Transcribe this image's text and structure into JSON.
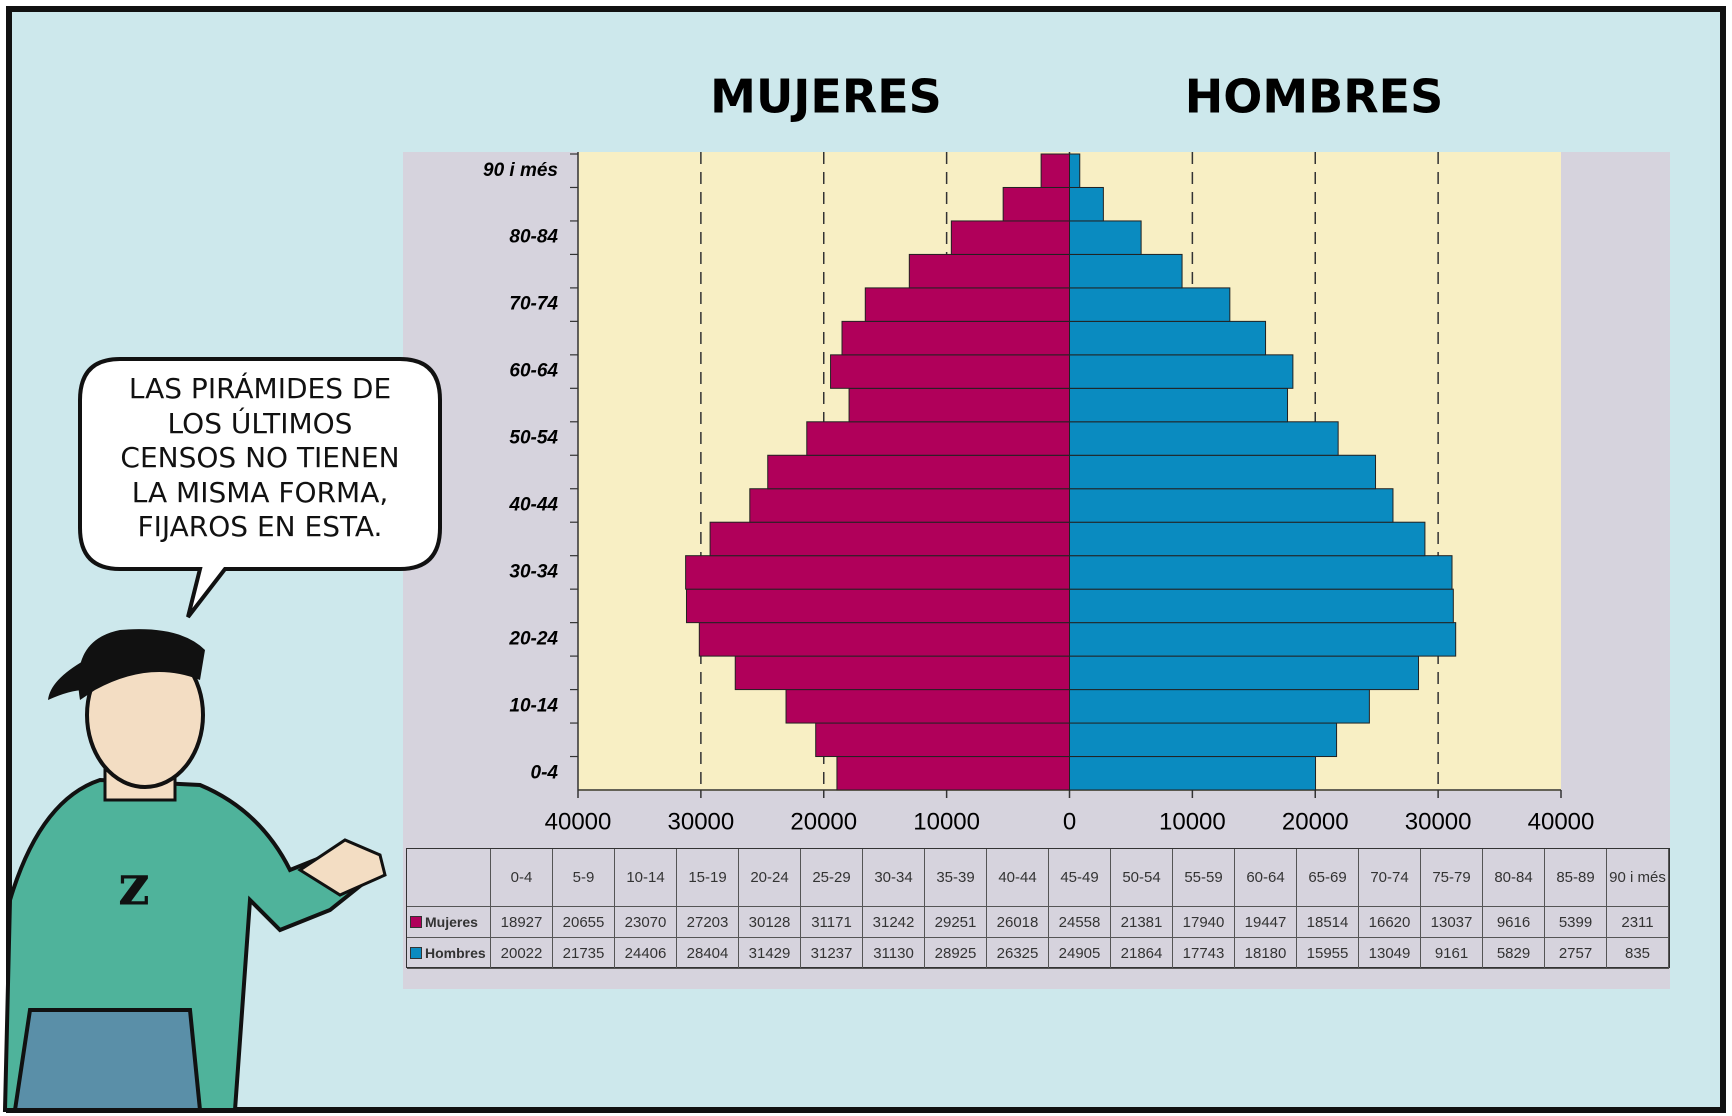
{
  "chart_data": {
    "type": "pyramid",
    "left_title": "MUJERES",
    "right_title": "HOMBRES",
    "annotation": [
      "LAS PIRÁMIDES DE",
      "LOS ÚLTIMOS",
      "CENSOS NO TIENEN",
      "LA MISMA FORMA,",
      "FIJAROS EN ESTA."
    ],
    "categories": [
      "0-4",
      "5-9",
      "10-14",
      "15-19",
      "20-24",
      "25-29",
      "30-34",
      "35-39",
      "40-44",
      "45-49",
      "50-54",
      "55-59",
      "60-64",
      "65-69",
      "70-74",
      "75-79",
      "80-84",
      "85-89",
      "90 i més"
    ],
    "series": [
      {
        "name": "Mujeres",
        "color": "#b0005a",
        "values": [
          18927,
          20655,
          23070,
          27203,
          30128,
          31171,
          31242,
          29251,
          26018,
          24558,
          21381,
          17940,
          19447,
          18514,
          16620,
          13037,
          9616,
          5399,
          2311
        ]
      },
      {
        "name": "Hombres",
        "color": "#0a8bc0",
        "values": [
          20022,
          21735,
          24406,
          28404,
          31429,
          31237,
          31130,
          28925,
          26325,
          24905,
          21864,
          17743,
          18180,
          15955,
          13049,
          9161,
          5829,
          2757,
          835
        ]
      }
    ],
    "xlim": [
      -40000,
      40000
    ],
    "xticks": [
      {
        "value": -40000,
        "label": "40000"
      },
      {
        "value": -30000,
        "label": "30000"
      },
      {
        "value": -20000,
        "label": "20000"
      },
      {
        "value": -10000,
        "label": "10000"
      },
      0,
      10000,
      20000,
      30000,
      40000
    ],
    "grid": true
  }
}
